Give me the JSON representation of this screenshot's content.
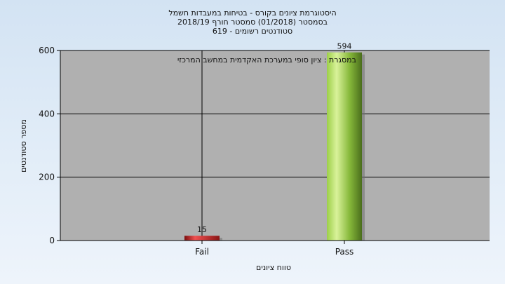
{
  "chart_data": {
    "type": "bar",
    "title_lines": [
      "היסטוגרמת ציונים בקורס - בטיחות במעבדות חשמל",
      "בסמסטר  (01/2018)  סמסטר חורף 2018/19",
      "סטודנטים רשומים - 619"
    ],
    "annotation": "במסגרת : ציון סופי במערכת האקדמית במחשב המרכזי",
    "categories": [
      "Fail",
      "Pass"
    ],
    "values": [
      15,
      594
    ],
    "data_labels": [
      "15",
      "594"
    ],
    "bar_colors": [
      "#d92020",
      "#8cc63f"
    ],
    "xlabel": "טווח ציונים",
    "ylabel": "מספר סטודנטים",
    "ylim": [
      0,
      600
    ],
    "yticks": [
      0,
      200,
      400,
      600
    ],
    "grid": true,
    "plot_background": "#b0b0b0"
  }
}
